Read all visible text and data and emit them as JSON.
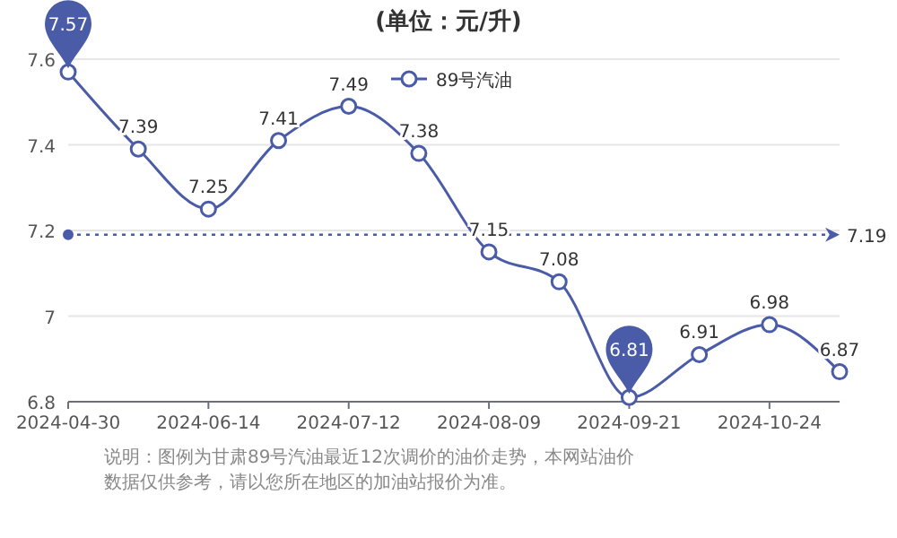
{
  "chart_data": {
    "type": "line",
    "title": "(单位：元/升)",
    "categories": [
      "2024-04-30",
      null,
      "2024-06-14",
      null,
      "2024-07-12",
      null,
      "2024-08-09",
      null,
      "2024-09-21",
      null,
      "2024-10-24",
      null
    ],
    "series": [
      {
        "name": "89号汽油",
        "color": "#4a5ba8",
        "values": [
          7.57,
          7.39,
          7.25,
          7.41,
          7.49,
          7.38,
          7.15,
          7.08,
          6.81,
          6.91,
          6.98,
          6.87
        ]
      }
    ],
    "value_labels": [
      null,
      "7.39",
      "7.25",
      "7.41",
      "7.49",
      "7.38",
      "7.15",
      "7.08",
      null,
      "6.91",
      "6.98",
      "6.87"
    ],
    "ylim": [
      6.8,
      7.6
    ],
    "yticks": [
      6.8,
      7,
      7.2,
      7.4,
      7.6
    ],
    "grid": "y",
    "legend": "top",
    "marker": "circle",
    "ref_lines": [
      {
        "axis": "y",
        "value": 7.19,
        "label": "7.19",
        "color": "#4a5ba8",
        "line_style": "dotted"
      }
    ],
    "annotations": [
      {
        "text": "7.57",
        "x": "2024-04-30",
        "y": 7.57
      },
      {
        "text": "6.81",
        "x": "2024-09-21",
        "y": 6.81
      },
      "说明：图例为甘肃89号汽油最近12次调价的油价走势，本网站油价数据仅供参考，请以您所在地区的加油站报价为准。"
    ]
  }
}
